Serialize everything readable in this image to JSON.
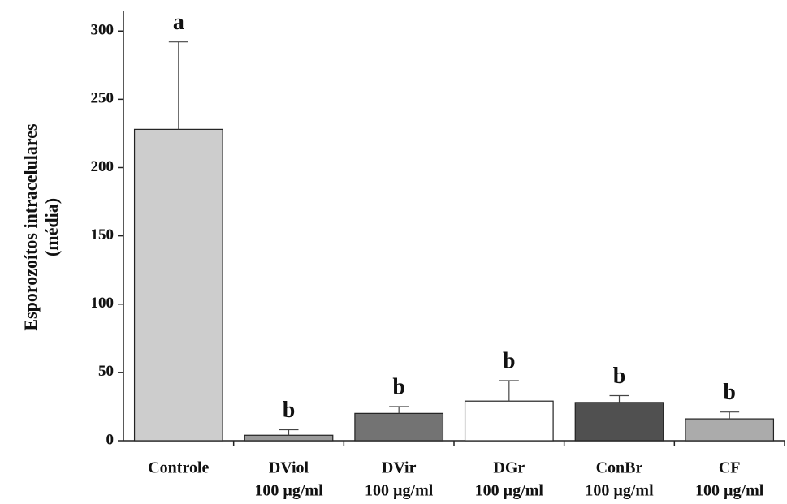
{
  "chart_data": {
    "type": "bar",
    "y_label": [
      "Esporozoítos intracelulares",
      "(média)"
    ],
    "categories": [
      [
        "Controle"
      ],
      [
        "DViol",
        "100 µg/ml"
      ],
      [
        "DVir",
        "100 µg/ml"
      ],
      [
        "DGr",
        "100 µg/ml"
      ],
      [
        "ConBr",
        "100 µg/ml"
      ],
      [
        "CF",
        "100 µg/ml"
      ]
    ],
    "values": [
      228,
      4,
      20,
      29,
      28,
      16
    ],
    "errors": [
      64,
      4,
      5,
      15,
      5,
      5
    ],
    "annotations": [
      "a",
      "b",
      "b",
      "b",
      "b",
      "b"
    ],
    "colors": [
      "#cdcdcd",
      "#9a9a9a",
      "#737373",
      "#ffffff",
      "#505050",
      "#ababab"
    ],
    "ylim": [
      0,
      315
    ],
    "yticks": [
      0,
      50,
      100,
      150,
      200,
      250,
      300
    ]
  }
}
